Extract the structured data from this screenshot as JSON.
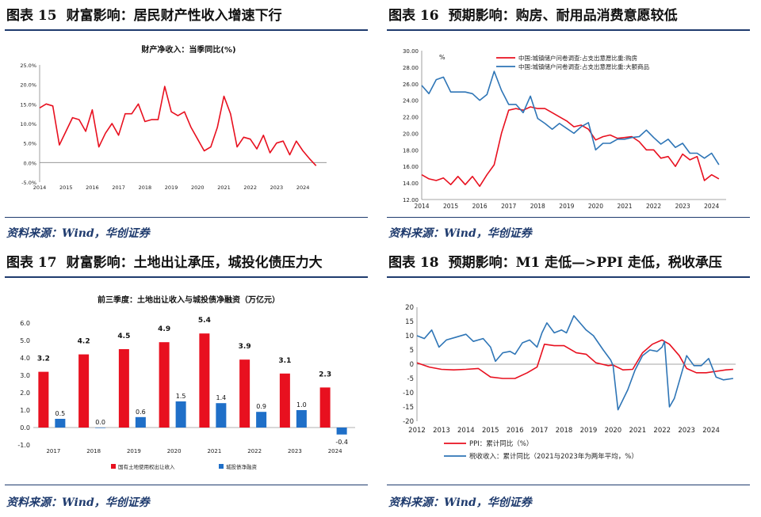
{
  "panels": {
    "p15": {
      "no": "图表 15",
      "title": "财富影响：居民财产性收入增速下行",
      "source": "资料来源：Wind，华创证券"
    },
    "p16": {
      "no": "图表 16",
      "title": "预期影响：购房、耐用品消费意愿较低",
      "source": "资料来源：Wind，华创证券"
    },
    "p17": {
      "no": "图表 17",
      "title": "财富影响：土地出让承压，城投化债压力大",
      "source": "资料来源：Wind，华创证券"
    },
    "p18": {
      "no": "图表 18",
      "title": "预期影响：M1 走低—>PPI 走低，税收承压",
      "source": "资料来源：Wind，华创证券"
    }
  },
  "chart_data": [
    {
      "id": "fig15",
      "type": "line",
      "title": "财产净收入：当季同比(%)",
      "ylim": [
        -5,
        25
      ],
      "yticks": [
        "-5.0%",
        "0.0%",
        "5.0%",
        "10.0%",
        "15.0%",
        "20.0%",
        "25.0%"
      ],
      "xlim": [
        2014,
        2024.9
      ],
      "xticks": [
        "2014",
        "2015",
        "2016",
        "2017",
        "2018",
        "2019",
        "2020",
        "2021",
        "2022",
        "2023",
        "2024"
      ],
      "series": [
        {
          "color": "#e8101f",
          "x": [
            2014.0,
            2014.25,
            2014.5,
            2014.75,
            2015.0,
            2015.25,
            2015.5,
            2015.75,
            2016.0,
            2016.25,
            2016.5,
            2016.75,
            2017.0,
            2017.25,
            2017.5,
            2017.75,
            2018.0,
            2018.25,
            2018.5,
            2018.75,
            2019.0,
            2019.25,
            2019.5,
            2019.75,
            2020.0,
            2020.25,
            2020.5,
            2020.75,
            2021.0,
            2021.25,
            2021.5,
            2021.75,
            2022.0,
            2022.25,
            2022.5,
            2022.75,
            2023.0,
            2023.25,
            2023.5,
            2023.75,
            2024.0,
            2024.25,
            2024.5
          ],
          "y": [
            14,
            15,
            14.5,
            4.5,
            8,
            11.5,
            11,
            8,
            13.5,
            4,
            7.5,
            10,
            7,
            12.5,
            12.5,
            15,
            10.5,
            11,
            11,
            19.5,
            13,
            12,
            13,
            9,
            6,
            3,
            4,
            9,
            17,
            12.5,
            4,
            6.5,
            6,
            3.5,
            7,
            2.5,
            5,
            5.5,
            2,
            5.5,
            3,
            1,
            -0.8
          ]
        }
      ]
    },
    {
      "id": "fig16",
      "type": "line",
      "ylabel": "%",
      "ylim": [
        12,
        30
      ],
      "yticks": [
        "12.00",
        "14.00",
        "16.00",
        "18.00",
        "20.00",
        "22.00",
        "24.00",
        "26.00",
        "28.00",
        "30.00"
      ],
      "xlim": [
        2014,
        2024.5
      ],
      "xticks": [
        "2014",
        "2015",
        "2016",
        "2017",
        "2018",
        "2019",
        "2020",
        "2021",
        "2022",
        "2023",
        "2024"
      ],
      "legend": "top",
      "series": [
        {
          "name": "中国:城镇储户问卷调查:占支出意愿比重:购房",
          "color": "#e8101f",
          "x": [
            2014.0,
            2014.25,
            2014.5,
            2014.75,
            2015.0,
            2015.25,
            2015.5,
            2015.75,
            2016.0,
            2016.25,
            2016.5,
            2016.75,
            2017.0,
            2017.25,
            2017.5,
            2017.75,
            2018.0,
            2018.25,
            2018.5,
            2018.75,
            2019.0,
            2019.25,
            2019.5,
            2019.75,
            2020.0,
            2020.25,
            2020.5,
            2020.75,
            2021.0,
            2021.25,
            2021.5,
            2021.75,
            2022.0,
            2022.25,
            2022.5,
            2022.75,
            2023.0,
            2023.25,
            2023.5,
            2023.75,
            2024.0,
            2024.25
          ],
          "y": [
            15,
            14.5,
            14.3,
            14.6,
            13.8,
            14.8,
            13.8,
            14.8,
            13.6,
            15,
            16.2,
            20,
            22.8,
            23,
            22.8,
            23.2,
            23,
            23,
            22.5,
            22,
            21.5,
            20.8,
            21,
            20.5,
            19.2,
            19.6,
            19.8,
            19.4,
            19.5,
            19.6,
            19,
            18,
            18,
            17,
            17.2,
            16,
            17.5,
            16.8,
            17.2,
            14.3,
            15,
            14.5
          ]
        },
        {
          "name": "中国:城镇储户问卷调查:占支出意愿比重:大额商品",
          "color": "#2e75b6",
          "x": [
            2014.0,
            2014.25,
            2014.5,
            2014.75,
            2015.0,
            2015.25,
            2015.5,
            2015.75,
            2016.0,
            2016.25,
            2016.5,
            2016.75,
            2017.0,
            2017.25,
            2017.5,
            2017.75,
            2018.0,
            2018.25,
            2018.5,
            2018.75,
            2019.0,
            2019.25,
            2019.5,
            2019.75,
            2020.0,
            2020.25,
            2020.5,
            2020.75,
            2021.0,
            2021.25,
            2021.5,
            2021.75,
            2022.0,
            2022.25,
            2022.5,
            2022.75,
            2023.0,
            2023.25,
            2023.5,
            2023.75,
            2024.0,
            2024.25
          ],
          "y": [
            25.8,
            24.8,
            26.5,
            26.8,
            25,
            25,
            25,
            24.8,
            24,
            24.7,
            27.5,
            25.2,
            23.5,
            23.5,
            22.5,
            24.5,
            21.8,
            21.2,
            20.5,
            21.2,
            20.6,
            20,
            20.8,
            21.3,
            18,
            18.8,
            18.8,
            19.3,
            19.3,
            19.5,
            19.6,
            20.4,
            19.5,
            18.7,
            19.3,
            18.3,
            18.8,
            17.6,
            17.6,
            17,
            17.6,
            16.2
          ]
        }
      ]
    },
    {
      "id": "fig17",
      "type": "bar",
      "title": "前三季度：土地出让收入与城投债净融资（万亿元）",
      "ylim": [
        -1,
        6
      ],
      "yticks": [
        "-1.0",
        "0.0",
        "1.0",
        "2.0",
        "3.0",
        "4.0",
        "5.0",
        "6.0"
      ],
      "categories": [
        "2017",
        "2018",
        "2019",
        "2020",
        "2021",
        "2022",
        "2023",
        "2024"
      ],
      "legend": "bottom",
      "series": [
        {
          "name": "国有土地使用权出让收入",
          "color": "#e8101f",
          "values": [
            3.2,
            4.2,
            4.5,
            4.9,
            5.4,
            3.9,
            3.1,
            2.3
          ],
          "labels": [
            "3.2",
            "4.2",
            "4.5",
            "4.9",
            "5.4",
            "3.9",
            "3.1",
            "2.3"
          ]
        },
        {
          "name": "城投债净融资",
          "color": "#1f6fc8",
          "values": [
            0.5,
            0.0,
            0.6,
            1.5,
            1.4,
            0.9,
            1.0,
            -0.4
          ],
          "labels": [
            "0.5",
            "0.0",
            "0.6",
            "1.5",
            "1.4",
            "0.9",
            "1.0",
            "-0.4"
          ]
        }
      ]
    },
    {
      "id": "fig18",
      "type": "line",
      "ylim": [
        -20,
        20
      ],
      "yticks": [
        "-20",
        "-15",
        "-10",
        "-5",
        "0",
        "5",
        "10",
        "15",
        "20"
      ],
      "xlim": [
        2012,
        2025
      ],
      "xticks": [
        "2012",
        "2013",
        "2014",
        "2015",
        "2016",
        "2017",
        "2018",
        "2019",
        "2020",
        "2021",
        "2022",
        "2023",
        "2024"
      ],
      "legend": "bottom",
      "series": [
        {
          "name": "PPI：累计同比（%）",
          "color": "#e8101f",
          "x": [
            2012.0,
            2012.5,
            2013.0,
            2013.5,
            2014.0,
            2014.5,
            2015.0,
            2015.5,
            2016.0,
            2016.5,
            2016.9,
            2017.2,
            2017.6,
            2018.0,
            2018.5,
            2018.9,
            2019.3,
            2019.8,
            2020.0,
            2020.4,
            2020.8,
            2021.2,
            2021.6,
            2022.0,
            2022.3,
            2022.7,
            2023.0,
            2023.4,
            2023.8,
            2024.2,
            2024.6,
            2024.9
          ],
          "y": [
            0.5,
            -1,
            -1.8,
            -2,
            -1.8,
            -1.5,
            -4.5,
            -5,
            -5,
            -3,
            -1,
            7,
            6.5,
            6.5,
            4,
            3.5,
            0.5,
            -0.5,
            -0.3,
            -2,
            -1.8,
            4,
            7,
            8.5,
            7,
            3,
            -1.5,
            -3,
            -3,
            -2.5,
            -2,
            -1.8
          ]
        },
        {
          "name": "税收收入：累计同比（2021与2023年为两年平均，%）",
          "color": "#2e75b6",
          "x": [
            2012.0,
            2012.3,
            2012.6,
            2012.9,
            2013.2,
            2013.6,
            2014.0,
            2014.3,
            2014.7,
            2015.0,
            2015.2,
            2015.5,
            2015.8,
            2016.0,
            2016.3,
            2016.6,
            2016.9,
            2017.1,
            2017.3,
            2017.6,
            2017.9,
            2018.1,
            2018.4,
            2018.7,
            2018.9,
            2019.2,
            2019.6,
            2019.9,
            2020.0,
            2020.2,
            2020.6,
            2020.9,
            2021.2,
            2021.5,
            2021.8,
            2022.0,
            2022.1,
            2022.3,
            2022.5,
            2022.8,
            2023.0,
            2023.3,
            2023.6,
            2023.9,
            2024.2,
            2024.5,
            2024.9
          ],
          "y": [
            10,
            9,
            12,
            6,
            8.5,
            9.5,
            10.5,
            8,
            9,
            6,
            1,
            4,
            4.5,
            3.5,
            7.5,
            8.5,
            6,
            11,
            14.5,
            11,
            12,
            11,
            17,
            14,
            12,
            10,
            5,
            1.5,
            -0.5,
            -16,
            -9,
            -2,
            3,
            5,
            4.5,
            6,
            8,
            -15,
            -12,
            -3,
            3,
            -0.5,
            -0.5,
            2,
            -4.5,
            -5.5,
            -5
          ]
        }
      ]
    }
  ]
}
